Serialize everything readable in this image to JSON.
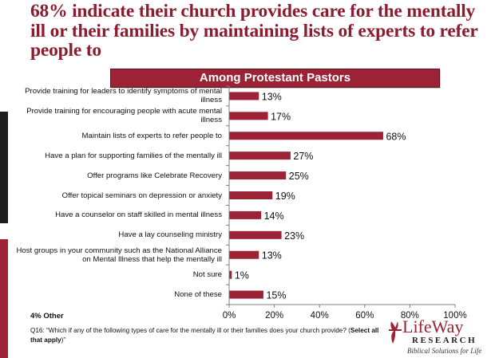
{
  "title": "68% indicate their church provides care for the mentally ill or their families by maintaining lists of experts to refer people to",
  "banner": "Among Protestant Pastors",
  "other_note": "4% Other",
  "footnote": {
    "question": "Q16: “Which if any of the following types of care for the mentally ill or their families does your church provide? (",
    "bold": "Select all that apply",
    "end": ")”"
  },
  "logo": {
    "word": "LifeWay",
    "research": "RESEARCH",
    "tagline": "Biblical Solutions for Life"
  },
  "colors": {
    "bar": "#9b2335",
    "title": "#8c1d31",
    "banner": "#9b2335"
  },
  "chart_data": {
    "type": "bar",
    "orientation": "horizontal",
    "categories": [
      "Provide training for leaders to identify symptoms of mental illness",
      "Provide training for encouraging people with acute mental illness",
      "Maintain lists of experts to refer people to",
      "Have a plan for supporting families of the mentally ill",
      "Offer programs like Celebrate Recovery",
      "Offer topical seminars on depression or anxiety",
      "Have a counselor on staff skilled in mental illness",
      "Have a lay counseling ministry",
      "Host groups in your community such as the National Alliance on Mental Illness that help the mentally ill",
      "Not sure",
      "None of these"
    ],
    "values": [
      13,
      17,
      68,
      27,
      25,
      19,
      14,
      23,
      13,
      1,
      15
    ],
    "value_labels": [
      "13%",
      "17%",
      "68%",
      "27%",
      "25%",
      "19%",
      "14%",
      "23%",
      "13%",
      "1%",
      "15%"
    ],
    "xlim": [
      0,
      100
    ],
    "xticks": [
      0,
      20,
      40,
      60,
      80,
      100
    ],
    "xtick_labels": [
      "0%",
      "20%",
      "40%",
      "60%",
      "80%",
      "100%"
    ],
    "grid": false,
    "legend": "none"
  }
}
